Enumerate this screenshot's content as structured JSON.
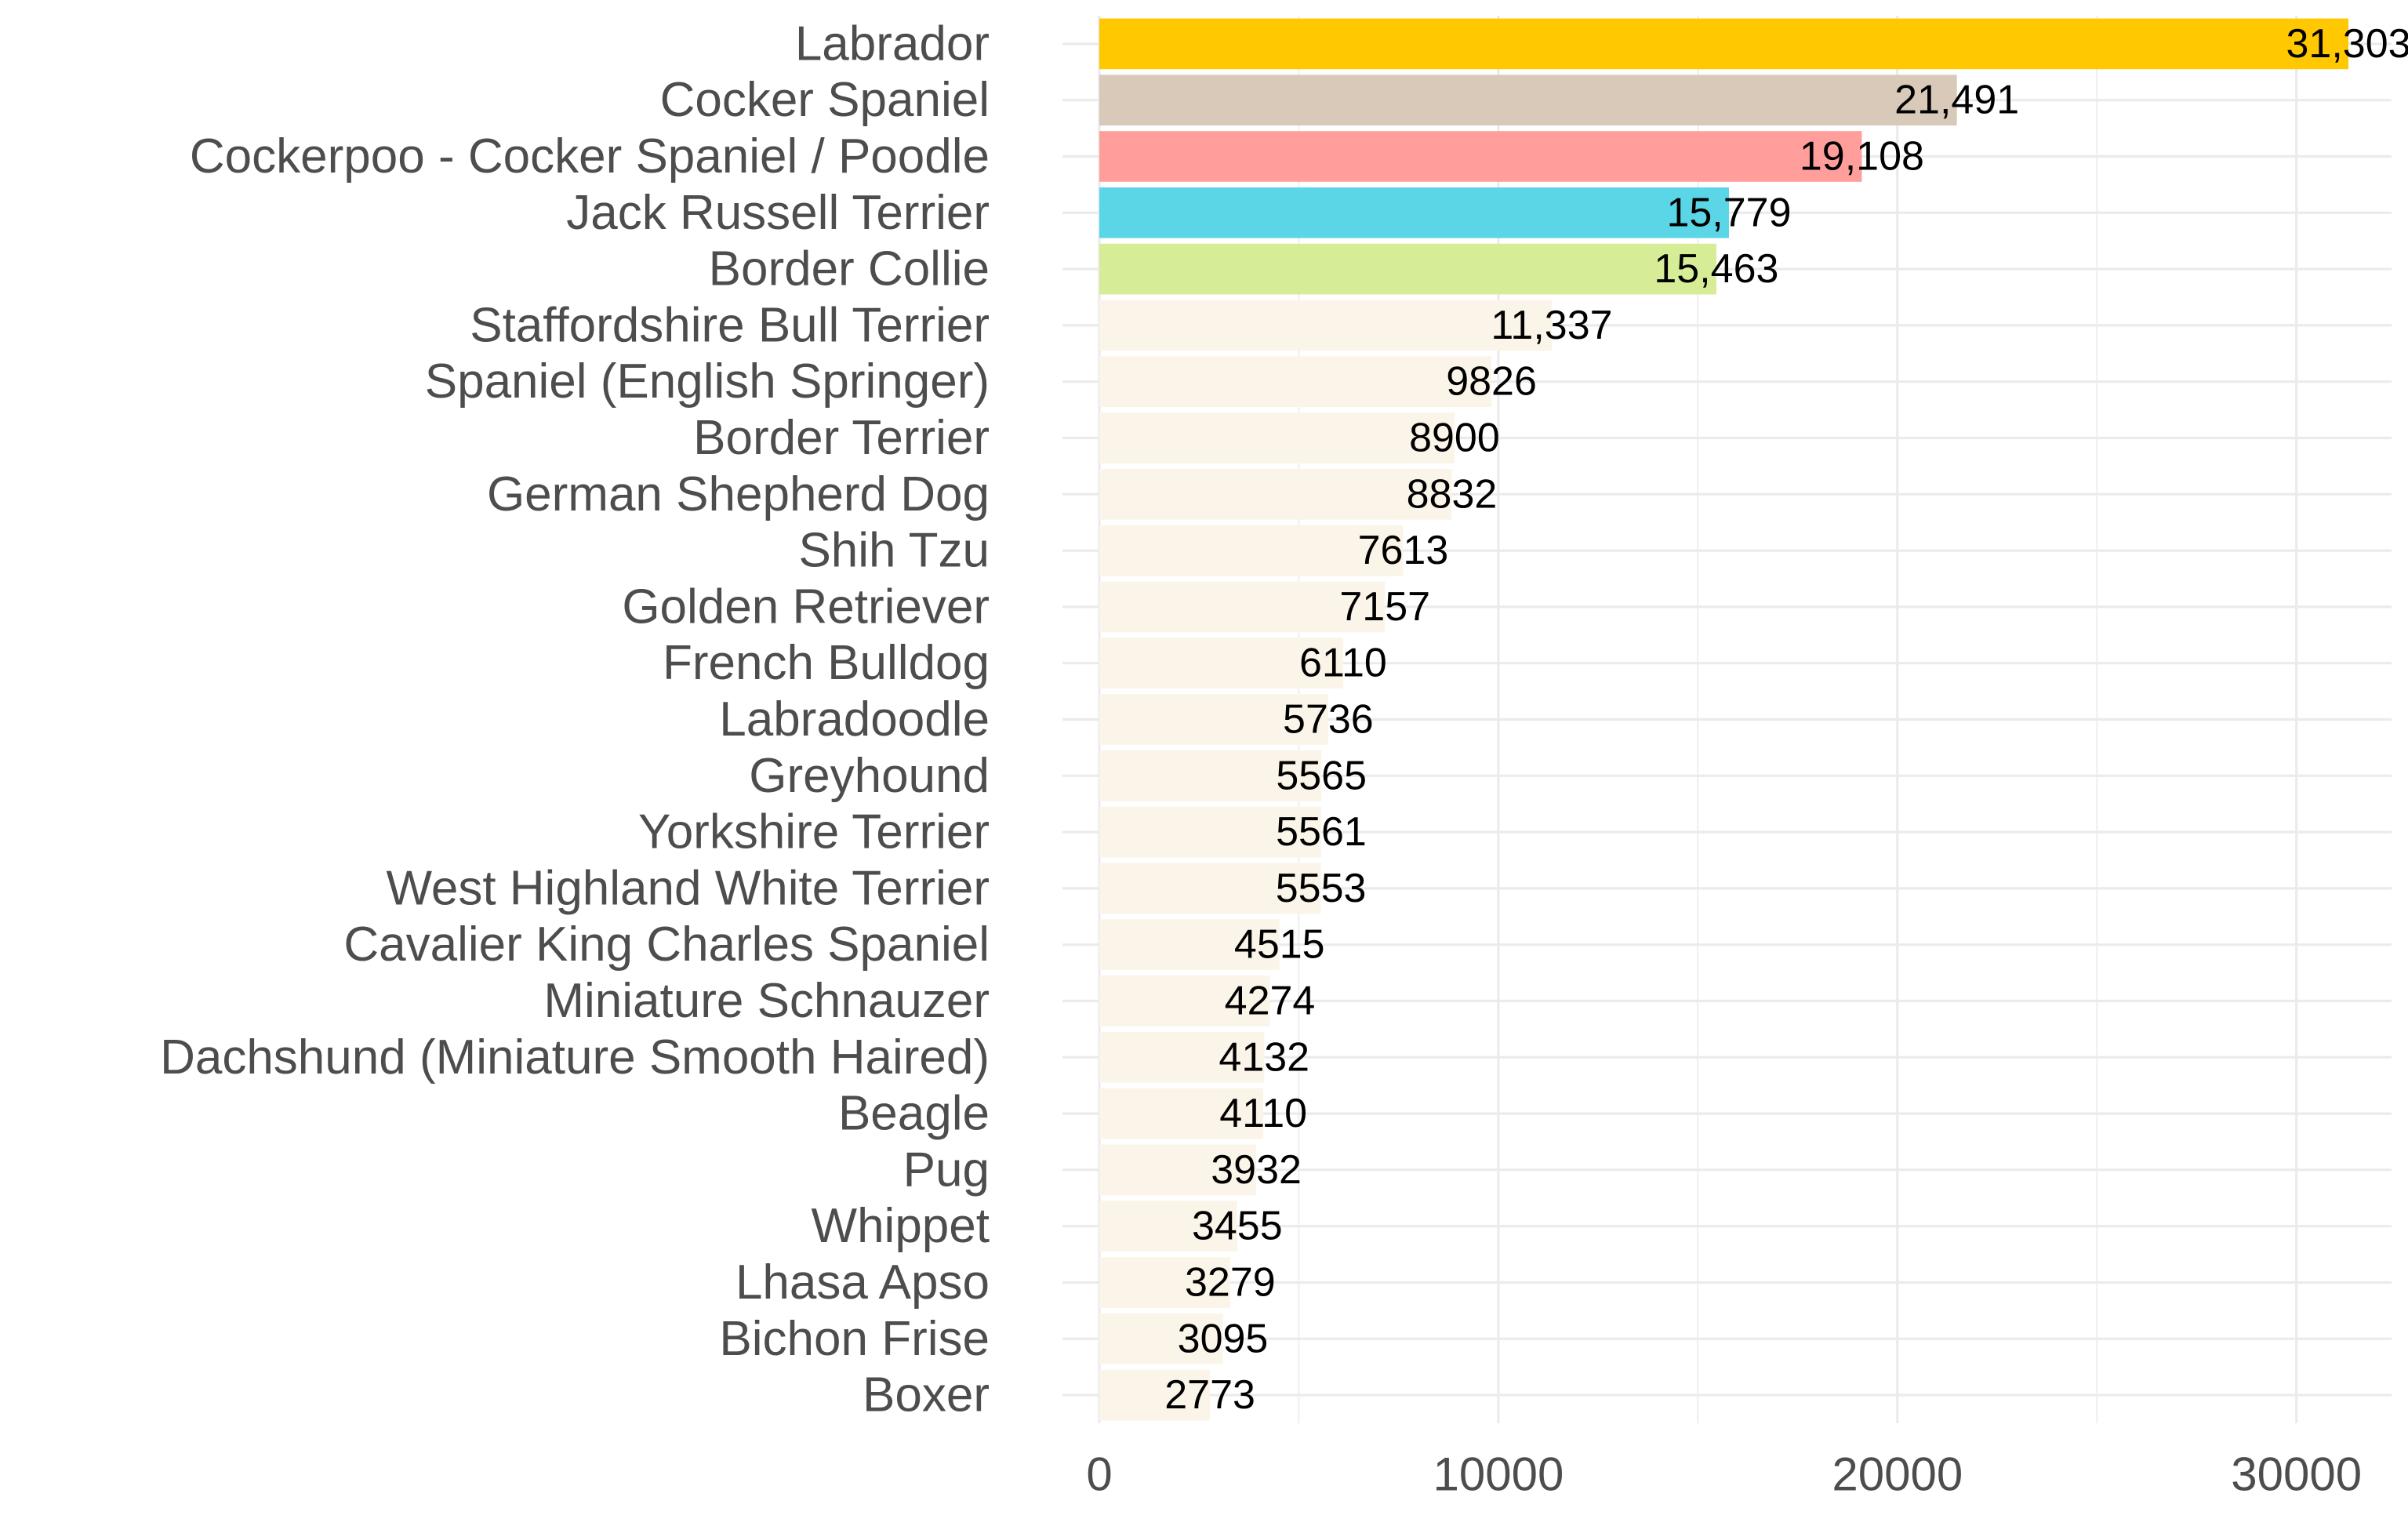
{
  "chart_data": {
    "type": "bar",
    "orientation": "horizontal",
    "title": "",
    "xlabel": "",
    "ylabel": "",
    "xlim": [
      0,
      32500
    ],
    "x_ticks": [
      0,
      10000,
      20000,
      30000
    ],
    "x_tick_labels": [
      "0",
      "10000",
      "20000",
      "30000"
    ],
    "grid": true,
    "legend": "none",
    "categories": [
      "Labrador",
      "Cocker Spaniel",
      "Cockerpoo - Cocker Spaniel / Poodle",
      "Jack Russell Terrier",
      "Border Collie",
      "Staffordshire Bull Terrier",
      "Spaniel (English Springer)",
      "Border Terrier",
      "German Shepherd Dog",
      "Shih Tzu",
      "Golden Retriever",
      "French Bulldog",
      "Labradoodle",
      "Greyhound",
      "Yorkshire Terrier",
      "West Highland White Terrier",
      "Cavalier King Charles Spaniel",
      "Miniature Schnauzer",
      "Dachshund (Miniature Smooth Haired)",
      "Beagle",
      "Pug",
      "Whippet",
      "Lhasa Apso",
      "Bichon Frise",
      "Boxer"
    ],
    "values": [
      31303,
      21491,
      19108,
      15779,
      15463,
      11337,
      9826,
      8900,
      8832,
      7613,
      7157,
      6110,
      5736,
      5565,
      5561,
      5553,
      4515,
      4274,
      4132,
      4110,
      3932,
      3455,
      3279,
      3095,
      2773
    ],
    "value_labels": [
      "31,303",
      "21,491",
      "19,108",
      "15,779",
      "15,463",
      "11,337",
      "9826",
      "8900",
      "8832",
      "7613",
      "7157",
      "6110",
      "5736",
      "5565",
      "5561",
      "5553",
      "4515",
      "4274",
      "4132",
      "4110",
      "3932",
      "3455",
      "3279",
      "3095",
      "2773"
    ],
    "colors": [
      "#FFC800",
      "#D9C9B9",
      "#FF9E9B",
      "#5AD6E6",
      "#D6EC96",
      "#FBF4E8",
      "#FBF4E8",
      "#FBF4E8",
      "#FBF4E8",
      "#FBF4E8",
      "#FBF4E8",
      "#FBF4E8",
      "#FBF4E8",
      "#FBF4E8",
      "#FBF4E8",
      "#FBF4E8",
      "#FBF4E8",
      "#FBF4E8",
      "#FBF4E8",
      "#FBF4E8",
      "#FBF4E8",
      "#FBF4E8",
      "#FBF4E8",
      "#FBF4E8",
      "#FBF4E8"
    ],
    "background": "#FFFFFF",
    "grid_color": "#EBEBEB",
    "label_color": "#4D4D4D"
  }
}
